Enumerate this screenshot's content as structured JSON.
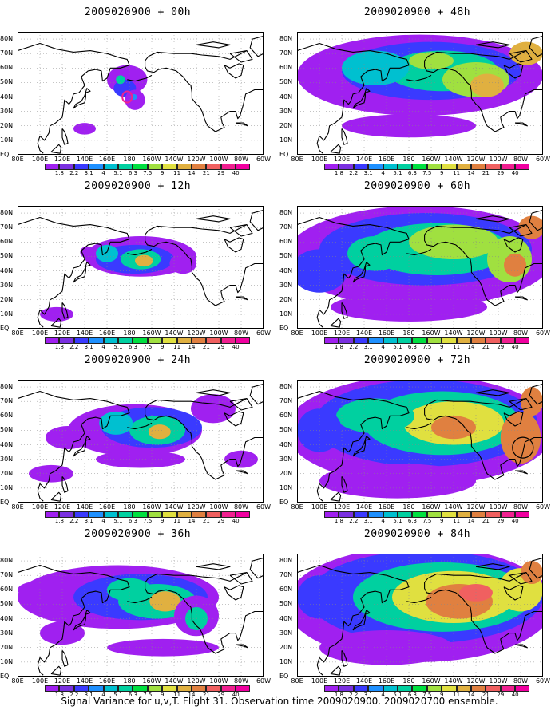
{
  "panels": [
    {
      "title": "2009020900 + 00h",
      "level": 0
    },
    {
      "title": "2009020900 + 48h",
      "level": 4
    },
    {
      "title": "2009020900 + 12h",
      "level": 1
    },
    {
      "title": "2009020900 + 60h",
      "level": 5
    },
    {
      "title": "2009020900 + 24h",
      "level": 2
    },
    {
      "title": "2009020900 + 72h",
      "level": 6
    },
    {
      "title": "2009020900 + 36h",
      "level": 3
    },
    {
      "title": "2009020900 + 84h",
      "level": 7
    }
  ],
  "lat_labels": [
    "80N",
    "70N",
    "60N",
    "50N",
    "40N",
    "30N",
    "20N",
    "10N",
    "EQ"
  ],
  "lon_labels": [
    "80E",
    "100E",
    "120E",
    "140E",
    "160E",
    "180",
    "160W",
    "140W",
    "120W",
    "100W",
    "80W",
    "60W"
  ],
  "colorbar": {
    "labels": [
      "1.8",
      "2.2",
      "3.1",
      "4",
      "5.1",
      "6.3",
      "7.5",
      "9",
      "11",
      "14",
      "21",
      "29",
      "40"
    ],
    "colors": [
      "#a020f0",
      "#7a30e0",
      "#3a3aff",
      "#1e90ff",
      "#00c0d0",
      "#00d0a0",
      "#00e040",
      "#a0e040",
      "#e0e040",
      "#e0b040",
      "#e08040",
      "#f06060",
      "#f02090",
      "#f000a0"
    ]
  },
  "caption": "Signal Variance for u,v,T. Flight 31. Observation time 2009020900. 2009020700 ensemble."
}
